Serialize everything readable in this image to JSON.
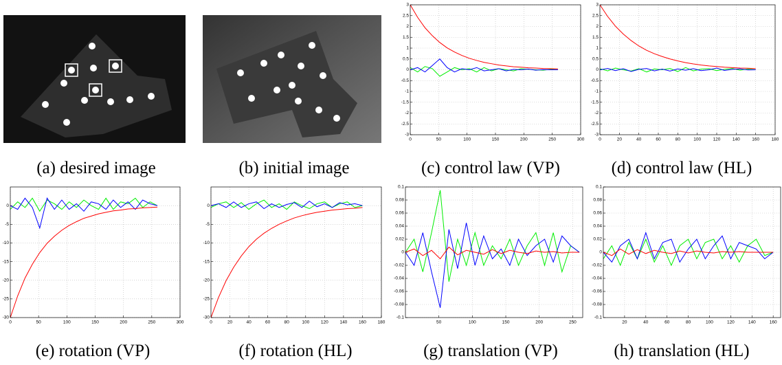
{
  "captions": [
    "(a) desired image",
    "(b) initial image",
    "(c) control law (VP)",
    "(d) control law (HL)",
    "(e) rotation (VP)",
    "(f) rotation (HL)",
    "(g) translation (VP)",
    "(h) translation (HL)"
  ],
  "chart_data": [
    {
      "type": "line",
      "grid": true,
      "xlim": [
        0,
        300
      ],
      "xticks": [
        0,
        50,
        100,
        150,
        200,
        250,
        300
      ],
      "ylim": [
        -3,
        3
      ],
      "yticks": [
        -3,
        -2.5,
        -2,
        -1.5,
        -1,
        -0.5,
        0,
        0.5,
        1,
        1.5,
        2,
        2.5,
        3
      ],
      "x": [
        0,
        13,
        26,
        39,
        52,
        65,
        78,
        91,
        104,
        117,
        130,
        143,
        156,
        169,
        182,
        195,
        208,
        221,
        234,
        247,
        260
      ],
      "series": [
        {
          "color": "#00ee00",
          "values": [
            0.1,
            -0.1,
            0.15,
            0.05,
            -0.3,
            -0.1,
            0.1,
            0,
            0.05,
            -0.1,
            0.1,
            -0.05,
            0.05,
            0,
            -0.05,
            0.05,
            0.02,
            0,
            -0.02,
            0.02,
            0
          ]
        },
        {
          "color": "#0000ff",
          "values": [
            0,
            0.1,
            -0.1,
            0.2,
            0.5,
            0.1,
            -0.1,
            0.05,
            0,
            0.1,
            -0.05,
            0,
            0.05,
            -0.05,
            0.02,
            0,
            0.03,
            -0.02,
            0.01,
            0,
            0
          ]
        },
        {
          "color": "#ff0000",
          "values": [
            3,
            2.42,
            1.94,
            1.57,
            1.26,
            1.01,
            0.82,
            0.66,
            0.53,
            0.43,
            0.34,
            0.28,
            0.22,
            0.18,
            0.14,
            0.12,
            0.09,
            0.08,
            0.06,
            0.05,
            0.04
          ]
        }
      ]
    },
    {
      "type": "line",
      "grid": true,
      "xlim": [
        0,
        180
      ],
      "xticks": [
        0,
        20,
        40,
        60,
        80,
        100,
        120,
        140,
        160,
        180
      ],
      "ylim": [
        -3,
        3
      ],
      "yticks": [
        -3,
        -2.5,
        -2,
        -1.5,
        -1,
        -0.5,
        0,
        0.5,
        1,
        1.5,
        2,
        2.5,
        3
      ],
      "x": [
        0,
        8,
        16,
        24,
        32,
        40,
        48,
        56,
        64,
        72,
        80,
        88,
        96,
        104,
        112,
        120,
        128,
        136,
        144,
        152,
        160
      ],
      "series": [
        {
          "color": "#00ee00",
          "values": [
            0.05,
            -0.05,
            0.08,
            0,
            -0.06,
            0.05,
            -0.1,
            0.04,
            0,
            0.06,
            -0.08,
            0.1,
            -0.05,
            0.03,
            0.05,
            -0.04,
            0.02,
            0.06,
            -0.02,
            0.03,
            0
          ]
        },
        {
          "color": "#0000ff",
          "values": [
            0,
            0.06,
            -0.04,
            0.05,
            -0.08,
            0.02,
            0.06,
            -0.05,
            0.03,
            -0.06,
            0.04,
            -0.02,
            0.05,
            -0.04,
            0,
            0.08,
            -0.03,
            0.02,
            0.04,
            -0.01,
            0
          ]
        },
        {
          "color": "#ff0000",
          "values": [
            3,
            2.46,
            2.01,
            1.65,
            1.35,
            1.1,
            0.9,
            0.74,
            0.61,
            0.5,
            0.41,
            0.33,
            0.27,
            0.22,
            0.18,
            0.15,
            0.12,
            0.1,
            0.08,
            0.07,
            0.05
          ]
        }
      ]
    },
    {
      "type": "line",
      "grid": true,
      "xlim": [
        0,
        300
      ],
      "xticks": [
        0,
        50,
        100,
        150,
        200,
        250,
        300
      ],
      "ylim": [
        -30,
        5
      ],
      "yticks": [
        -30,
        -25,
        -20,
        -15,
        -10,
        -5,
        0
      ],
      "x": [
        0,
        13,
        26,
        39,
        52,
        65,
        78,
        91,
        104,
        117,
        130,
        143,
        156,
        169,
        182,
        195,
        208,
        221,
        234,
        247,
        260
      ],
      "series": [
        {
          "color": "#00ee00",
          "values": [
            -1,
            1,
            -0.5,
            2,
            -1.5,
            1.5,
            0.5,
            -1,
            1,
            -0.5,
            1.5,
            0,
            -1,
            2,
            -1,
            1,
            0.5,
            2,
            -0.5,
            1,
            0
          ]
        },
        {
          "color": "#0000ff",
          "values": [
            0,
            -1,
            2,
            -0.5,
            -6,
            2,
            -1,
            1.5,
            -1,
            0.5,
            -1.5,
            1,
            0.5,
            -1,
            1.5,
            -0.5,
            1,
            -1,
            1.5,
            0.5,
            0
          ]
        },
        {
          "color": "#ff0000",
          "values": [
            -30,
            -24.2,
            -19.4,
            -15.7,
            -12.6,
            -10.1,
            -8.2,
            -6.6,
            -5.3,
            -4.3,
            -3.4,
            -2.8,
            -2.2,
            -1.8,
            -1.4,
            -1.2,
            -0.9,
            -0.8,
            -0.6,
            -0.5,
            -0.4
          ]
        }
      ]
    },
    {
      "type": "line",
      "grid": true,
      "xlim": [
        0,
        180
      ],
      "xticks": [
        0,
        20,
        40,
        60,
        80,
        100,
        120,
        140,
        160,
        180
      ],
      "ylim": [
        -30,
        5
      ],
      "yticks": [
        -30,
        -25,
        -20,
        -15,
        -10,
        -5,
        0
      ],
      "x": [
        0,
        8,
        16,
        24,
        32,
        40,
        48,
        56,
        64,
        72,
        80,
        88,
        96,
        104,
        112,
        120,
        128,
        136,
        144,
        152,
        160
      ],
      "series": [
        {
          "color": "#00ee00",
          "values": [
            -0.5,
            0.5,
            1,
            -0.5,
            0.8,
            -1,
            0.5,
            1.5,
            -0.5,
            0.5,
            -1,
            1,
            0,
            -0.8,
            0.5,
            1,
            -0.5,
            0.5,
            1,
            -0.5,
            0
          ]
        },
        {
          "color": "#0000ff",
          "values": [
            0,
            0.5,
            -0.5,
            1,
            -0.5,
            0.5,
            1,
            -0.8,
            0.5,
            -0.5,
            0.3,
            0.8,
            -0.5,
            1.2,
            -0.3,
            0.5,
            -0.5,
            0.8,
            0.2,
            0.5,
            0
          ]
        },
        {
          "color": "#ff0000",
          "values": [
            -30,
            -24.6,
            -20.1,
            -16.5,
            -13.5,
            -11,
            -9,
            -7.4,
            -6.1,
            -5,
            -4.1,
            -3.3,
            -2.7,
            -2.2,
            -1.8,
            -1.5,
            -1.2,
            -1,
            -0.8,
            -0.7,
            -0.5
          ]
        }
      ]
    },
    {
      "type": "line",
      "grid": true,
      "xlim": [
        0,
        265
      ],
      "xticks": [
        50,
        100,
        150,
        200,
        250
      ],
      "ylim": [
        -0.1,
        0.1
      ],
      "yticks": [
        -0.1,
        -0.08,
        -0.06,
        -0.04,
        -0.02,
        0,
        0.02,
        0.04,
        0.06,
        0.08,
        0.1
      ],
      "x": [
        0,
        13,
        26,
        39,
        52,
        65,
        78,
        91,
        104,
        117,
        130,
        143,
        156,
        169,
        182,
        195,
        208,
        221,
        234,
        247,
        260
      ],
      "series": [
        {
          "color": "#00ee00",
          "values": [
            0,
            0.02,
            -0.03,
            0.03,
            0.095,
            -0.045,
            0.02,
            -0.02,
            0.03,
            -0.02,
            0.01,
            -0.01,
            0.02,
            -0.02,
            0.01,
            0.03,
            -0.02,
            0.03,
            -0.03,
            0.01,
            0
          ]
        },
        {
          "color": "#0000ff",
          "values": [
            0,
            -0.02,
            0.03,
            -0.03,
            -0.085,
            0.035,
            -0.025,
            0.045,
            -0.02,
            0.025,
            -0.01,
            0.005,
            -0.02,
            0.02,
            -0.005,
            0.01,
            0.02,
            -0.015,
            0.025,
            0.01,
            0
          ]
        },
        {
          "color": "#ff0000",
          "values": [
            0,
            0.005,
            -0.005,
            0.003,
            -0.01,
            0.008,
            -0.004,
            0.003,
            0,
            -0.003,
            0.004,
            -0.002,
            0.003,
            0,
            -0.002,
            0.002,
            0,
            0.001,
            -0.001,
            0,
            0
          ]
        }
      ]
    },
    {
      "type": "line",
      "grid": true,
      "xlim": [
        0,
        167
      ],
      "xticks": [
        20,
        40,
        60,
        80,
        100,
        120,
        140,
        160
      ],
      "ylim": [
        -0.1,
        0.1
      ],
      "yticks": [
        -0.1,
        -0.08,
        -0.06,
        -0.04,
        -0.02,
        0,
        0.02,
        0.04,
        0.06,
        0.08,
        0.1
      ],
      "x": [
        0,
        8,
        16,
        24,
        32,
        40,
        48,
        56,
        64,
        72,
        80,
        88,
        96,
        104,
        112,
        120,
        128,
        136,
        144,
        152,
        160
      ],
      "series": [
        {
          "color": "#00ee00",
          "values": [
            -0.01,
            0.01,
            -0.02,
            0.015,
            -0.01,
            0.02,
            -0.015,
            0.01,
            -0.02,
            0.01,
            0.02,
            -0.01,
            0.015,
            0.02,
            -0.01,
            0.01,
            -0.015,
            0.01,
            0.02,
            -0.005,
            0
          ]
        },
        {
          "color": "#0000ff",
          "values": [
            0,
            -0.015,
            0.01,
            0.02,
            -0.01,
            0.03,
            -0.01,
            0.015,
            0.02,
            -0.015,
            0.005,
            0.02,
            -0.01,
            0.01,
            0.025,
            -0.01,
            0.015,
            0.01,
            0.005,
            -0.01,
            0
          ]
        },
        {
          "color": "#ff0000",
          "values": [
            0,
            -0.005,
            0.005,
            -0.003,
            0.004,
            -0.002,
            0.003,
            0,
            -0.002,
            0.002,
            -0.001,
            0.002,
            0,
            -0.001,
            0.001,
            0,
            0.001,
            0,
            0,
            0,
            0
          ]
        }
      ]
    }
  ]
}
